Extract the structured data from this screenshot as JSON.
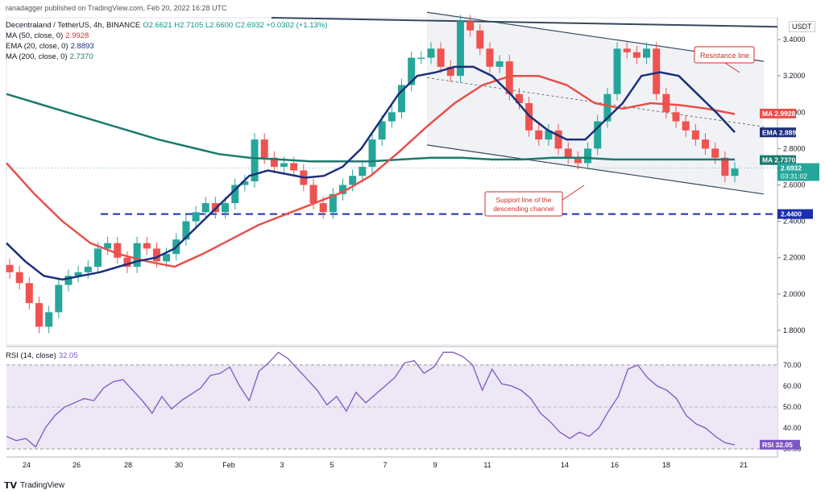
{
  "header": {
    "published": "ranadagger published on TradingView.com, Feb 20, 2022 16:28 UTC",
    "symbol": "Decentraland / TetherUS, 4h, BINANCE",
    "ohlc": "O2.6621 H2.7105 L2.6600 C2.6932 +0.0302 (+1.13%)",
    "ma50_label": "MA (50, close, 0)",
    "ma50_value": "2.9928",
    "ema20_label": "EMA (20, close, 0)",
    "ema20_value": "2.8893",
    "ma200_label": "MA (200, close, 0)",
    "ma200_value": "2.7370",
    "rsi_label": "RSI (14, close)",
    "rsi_value": "32.05"
  },
  "currency": "USDT",
  "footer_brand": "TradingView",
  "colors": {
    "up": "#26a69a",
    "down": "#ef5350",
    "ema20": "#1c2f7a",
    "ma50": "#e8504a",
    "ma200": "#1b7a6e",
    "channel": "#34495e",
    "support": "#1a2fb0",
    "rsi": "#7e57c2"
  },
  "annotations": {
    "resistance": "Resistance line",
    "support_channel": "Support line of the descending channel"
  },
  "chart_data": [
    {
      "type": "candlestick",
      "title": "Decentraland / TetherUS, 4h, BINANCE",
      "y_ticks": [
        "1.8000",
        "2.0000",
        "2.2000",
        "2.4000",
        "2.6000",
        "2.8000",
        "3.0000",
        "3.2000",
        "3.4000"
      ],
      "x_ticks": [
        "24",
        "26",
        "28",
        "30",
        "Feb",
        "3",
        "5",
        "7",
        "9",
        "11",
        "14",
        "16",
        "18",
        "21"
      ],
      "ylim": [
        1.72,
        3.52
      ],
      "price_labels": {
        "ma50": "2.9928",
        "ema20": "2.8893",
        "ma200": "2.7370",
        "last": "2.6932",
        "countdown": "03:31:02",
        "support": "2.4400"
      },
      "close_path": [
        2.12,
        2.06,
        1.95,
        1.82,
        1.9,
        2.05,
        2.1,
        2.12,
        2.15,
        2.25,
        2.28,
        2.2,
        2.15,
        2.28,
        2.25,
        2.18,
        2.22,
        2.3,
        2.4,
        2.45,
        2.5,
        2.45,
        2.5,
        2.6,
        2.62,
        2.85,
        2.75,
        2.7,
        2.72,
        2.68,
        2.6,
        2.5,
        2.45,
        2.55,
        2.6,
        2.65,
        2.7,
        2.85,
        2.95,
        3.0,
        3.15,
        3.3,
        3.3,
        3.35,
        3.25,
        3.2,
        3.5,
        3.45,
        3.35,
        3.25,
        3.28,
        3.1,
        3.05,
        2.9,
        2.85,
        2.9,
        2.8,
        2.75,
        2.72,
        2.8,
        2.95,
        3.1,
        3.35,
        3.33,
        3.3,
        3.35,
        3.1,
        3.0,
        2.95,
        2.9,
        2.85,
        2.8,
        2.75,
        2.65,
        2.69
      ],
      "ema20": [
        2.28,
        2.18,
        2.1,
        2.08,
        2.1,
        2.12,
        2.15,
        2.18,
        2.2,
        2.25,
        2.35,
        2.45,
        2.55,
        2.65,
        2.68,
        2.66,
        2.64,
        2.65,
        2.7,
        2.8,
        2.95,
        3.1,
        3.2,
        3.22,
        3.25,
        3.25,
        3.2,
        3.1,
        2.98,
        2.9,
        2.85,
        2.85,
        2.95,
        3.05,
        3.2,
        3.22,
        3.2,
        3.1,
        3.0,
        2.89
      ],
      "ma50": [
        2.72,
        2.55,
        2.4,
        2.28,
        2.22,
        2.18,
        2.15,
        2.22,
        2.3,
        2.38,
        2.44,
        2.5,
        2.56,
        2.65,
        2.78,
        2.92,
        3.05,
        3.15,
        3.2,
        3.2,
        3.15,
        3.05,
        3.02,
        3.05,
        3.04,
        3.02,
        2.99
      ],
      "ma200": [
        3.1,
        3.05,
        3.0,
        2.95,
        2.9,
        2.85,
        2.81,
        2.77,
        2.75,
        2.74,
        2.73,
        2.73,
        2.73,
        2.74,
        2.75,
        2.75,
        2.74,
        2.74,
        2.75,
        2.75,
        2.74,
        2.74,
        2.74,
        2.74,
        2.74
      ]
    },
    {
      "type": "line",
      "title": "RSI (14, close)",
      "y_ticks": [
        "30.00",
        "40.00",
        "50.00",
        "60.00",
        "70.00"
      ],
      "ylim": [
        27,
        78
      ],
      "band": [
        30,
        70
      ],
      "last_label": "32.05",
      "values": [
        36,
        34,
        35,
        31,
        40,
        46,
        50,
        52,
        54,
        53,
        59,
        62,
        63,
        58,
        53,
        47,
        55,
        49,
        53,
        56,
        59,
        65,
        66,
        69,
        60,
        53,
        67,
        71,
        76,
        73,
        68,
        63,
        58,
        51,
        55,
        48,
        57,
        52,
        56,
        60,
        64,
        71,
        72,
        66,
        69,
        76,
        76,
        74,
        70,
        58,
        68,
        61,
        60,
        58,
        54,
        47,
        43,
        38,
        35,
        38,
        36,
        40,
        48,
        55,
        68,
        70,
        64,
        60,
        58,
        54,
        46,
        42,
        40,
        36,
        33,
        32
      ]
    }
  ]
}
